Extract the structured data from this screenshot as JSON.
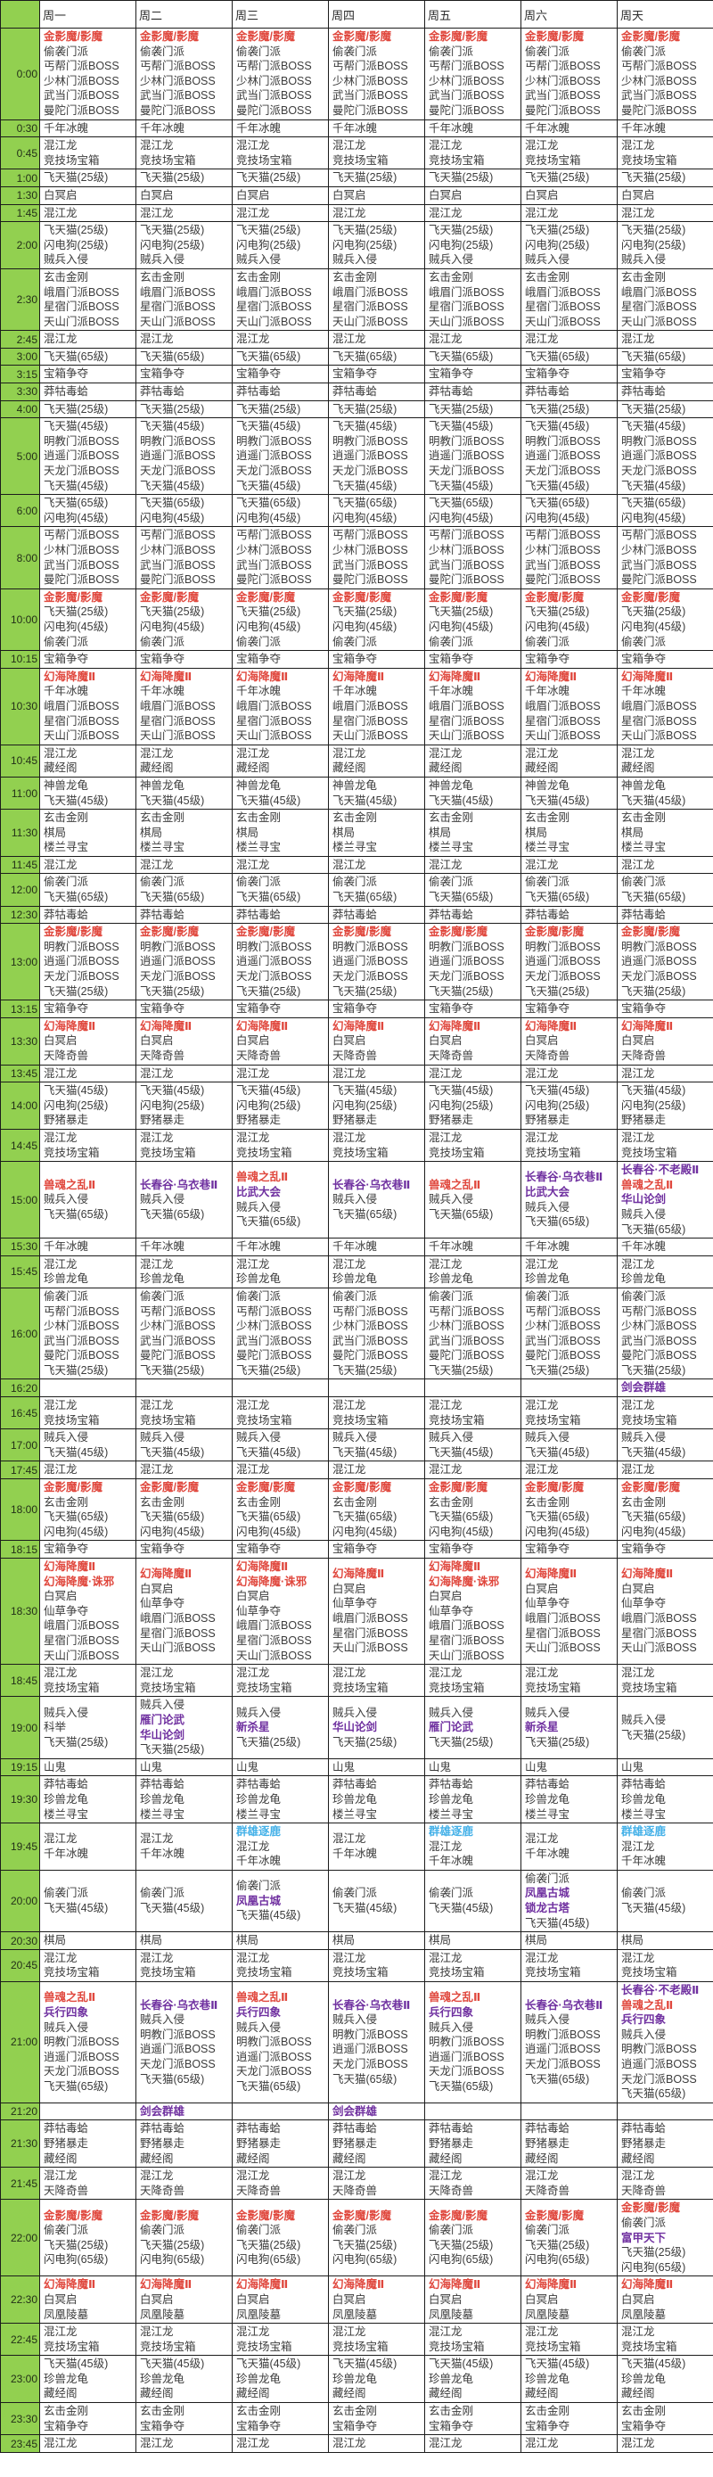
{
  "table": {
    "description": "游戏活动时间表",
    "colors": {
      "accent_green": "#92d050",
      "event_red": "#e0483e",
      "event_purple": "#7031a0",
      "event_blue": "#45b1e8",
      "event_normal": "#3c3c3c",
      "grid_border": "#1c1c1c"
    },
    "day_headers": [
      "周一",
      "周二",
      "周三",
      "周四",
      "周五",
      "周六",
      "周天"
    ],
    "rows": [
      {
        "time": "0:00",
        "all": [
          [
            "金影魔/影魔",
            "red"
          ],
          "偷袭门派",
          "丐帮门派BOSS",
          "少林门派BOSS",
          "武当门派BOSS",
          "曼陀门派BOSS"
        ]
      },
      {
        "time": "0:30",
        "all": [
          "千年冰魄"
        ]
      },
      {
        "time": "0:45",
        "all": [
          "混江龙",
          "竞技场宝箱"
        ]
      },
      {
        "time": "1:00",
        "all": [
          "飞天猫(25级)"
        ]
      },
      {
        "time": "1:30",
        "all": [
          "白冥启"
        ]
      },
      {
        "time": "1:45",
        "all": [
          "混江龙"
        ]
      },
      {
        "time": "2:00",
        "all": [
          "飞天猫(25级)",
          "闪电狗(25级)",
          "贼兵入侵"
        ]
      },
      {
        "time": "2:30",
        "all": [
          "玄击金刚",
          "峨眉门派BOSS",
          "星宿门派BOSS",
          "天山门派BOSS"
        ]
      },
      {
        "time": "2:45",
        "all": [
          "混江龙"
        ]
      },
      {
        "time": "3:00",
        "all": [
          "飞天猫(65级)"
        ]
      },
      {
        "time": "3:15",
        "all": [
          "宝箱争夺"
        ]
      },
      {
        "time": "3:30",
        "all": [
          "莽牯毒蛤"
        ]
      },
      {
        "time": "4:00",
        "all": [
          "飞天猫(25级)"
        ]
      },
      {
        "time": "5:00",
        "all": [
          "飞天猫(45级)",
          "明教门派BOSS",
          "逍遥门派BOSS",
          "天龙门派BOSS",
          "飞天猫(45级)"
        ]
      },
      {
        "time": "6:00",
        "all": [
          "飞天猫(65级)",
          "闪电狗(45级)"
        ]
      },
      {
        "time": "8:00",
        "all": [
          "丐帮门派BOSS",
          "少林门派BOSS",
          "武当门派BOSS",
          "曼陀门派BOSS"
        ]
      },
      {
        "time": "10:00",
        "all": [
          [
            "金影魔/影魔",
            "red"
          ],
          "飞天猫(25级)",
          "闪电狗(45级)",
          "偷袭门派"
        ]
      },
      {
        "time": "10:15",
        "all": [
          "宝箱争夺"
        ]
      },
      {
        "time": "10:30",
        "all": [
          [
            "幻海降魔Ⅱ",
            "red"
          ],
          "千年冰魄",
          "峨眉门派BOSS",
          "星宿门派BOSS",
          "天山门派BOSS"
        ]
      },
      {
        "time": "10:45",
        "all": [
          "混江龙",
          "藏经阁"
        ]
      },
      {
        "time": "11:00",
        "all": [
          "神兽龙龟",
          "飞天猫(45级)"
        ]
      },
      {
        "time": "11:30",
        "all": [
          "玄击金刚",
          "棋局",
          "楼兰寻宝"
        ]
      },
      {
        "time": "11:45",
        "all": [
          "混江龙"
        ]
      },
      {
        "time": "12:00",
        "all": [
          "偷袭门派",
          "飞天猫(65级)"
        ]
      },
      {
        "time": "12:30",
        "all": [
          "莽牯毒蛤"
        ]
      },
      {
        "time": "13:00",
        "all": [
          [
            "金影魔/影魔",
            "red"
          ],
          "明教门派BOSS",
          "逍遥门派BOSS",
          "天龙门派BOSS",
          "飞天猫(25级)"
        ]
      },
      {
        "time": "13:15",
        "all": [
          "宝箱争夺"
        ]
      },
      {
        "time": "13:30",
        "all": [
          [
            "幻海降魔Ⅱ",
            "red"
          ],
          "白冥启",
          "天降奇兽"
        ]
      },
      {
        "time": "13:45",
        "all": [
          "混江龙"
        ]
      },
      {
        "time": "14:00",
        "all": [
          "飞天猫(45级)",
          "闪电狗(25级)",
          "野猪暴走"
        ]
      },
      {
        "time": "14:45",
        "all": [
          "混江龙",
          "竞技场宝箱"
        ]
      },
      {
        "time": "15:00",
        "days": [
          [
            [
              "兽魂之乱Ⅱ",
              "red"
            ],
            "贼兵入侵",
            "飞天猫(65级)"
          ],
          [
            [
              "长春谷·乌衣巷Ⅱ",
              "purple"
            ],
            "贼兵入侵",
            "飞天猫(65级)"
          ],
          [
            [
              "兽魂之乱Ⅱ",
              "red"
            ],
            [
              "比武大会",
              "purple"
            ],
            "贼兵入侵",
            "飞天猫(65级)"
          ],
          [
            [
              "长春谷·乌衣巷Ⅱ",
              "purple"
            ],
            "贼兵入侵",
            "飞天猫(65级)"
          ],
          [
            [
              "兽魂之乱Ⅱ",
              "red"
            ],
            "贼兵入侵",
            "飞天猫(65级)"
          ],
          [
            [
              "长春谷·乌衣巷Ⅱ",
              "purple"
            ],
            [
              "比武大会",
              "purple"
            ],
            "贼兵入侵",
            "飞天猫(65级)"
          ],
          [
            [
              "长春谷·不老殿Ⅱ",
              "purple"
            ],
            [
              "兽魂之乱Ⅱ",
              "red"
            ],
            [
              "华山论剑",
              "purple"
            ],
            "贼兵入侵",
            "飞天猫(65级)"
          ]
        ]
      },
      {
        "time": "15:30",
        "all": [
          "千年冰魄"
        ]
      },
      {
        "time": "15:45",
        "all": [
          "混江龙",
          "珍兽龙龟"
        ]
      },
      {
        "time": "16:00",
        "all": [
          "偷袭门派",
          "丐帮门派BOSS",
          "少林门派BOSS",
          "武当门派BOSS",
          "曼陀门派BOSS",
          "飞天猫(25级)"
        ]
      },
      {
        "time": "16:20",
        "days": [
          [],
          [],
          [],
          [],
          [],
          [],
          [
            [
              "剑会群雄",
              "purple"
            ]
          ]
        ]
      },
      {
        "time": "16:45",
        "all": [
          "混江龙",
          "竞技场宝箱"
        ]
      },
      {
        "time": "17:00",
        "all": [
          "贼兵入侵",
          "飞天猫(45级)"
        ]
      },
      {
        "time": "17:45",
        "all": [
          "混江龙"
        ]
      },
      {
        "time": "18:00",
        "all": [
          [
            "金影魔/影魔",
            "red"
          ],
          "玄击金刚",
          "飞天猫(65级)",
          "闪电狗(45级)"
        ]
      },
      {
        "time": "18:15",
        "all": [
          "宝箱争夺"
        ]
      },
      {
        "time": "18:30",
        "days": [
          [
            [
              "幻海降魔Ⅱ",
              "red"
            ],
            [
              "幻海降魔·诛邪",
              "red"
            ],
            "白冥启",
            "仙草争夺",
            "峨眉门派BOSS",
            "星宿门派BOSS",
            "天山门派BOSS"
          ],
          [
            [
              "幻海降魔Ⅱ",
              "red"
            ],
            "白冥启",
            "仙草争夺",
            "峨眉门派BOSS",
            "星宿门派BOSS",
            "天山门派BOSS"
          ],
          [
            [
              "幻海降魔Ⅱ",
              "red"
            ],
            [
              "幻海降魔·诛邪",
              "red"
            ],
            "白冥启",
            "仙草争夺",
            "峨眉门派BOSS",
            "星宿门派BOSS",
            "天山门派BOSS"
          ],
          [
            [
              "幻海降魔Ⅱ",
              "red"
            ],
            "白冥启",
            "仙草争夺",
            "峨眉门派BOSS",
            "星宿门派BOSS",
            "天山门派BOSS"
          ],
          [
            [
              "幻海降魔Ⅱ",
              "red"
            ],
            [
              "幻海降魔·诛邪",
              "red"
            ],
            "白冥启",
            "仙草争夺",
            "峨眉门派BOSS",
            "星宿门派BOSS",
            "天山门派BOSS"
          ],
          [
            [
              "幻海降魔Ⅱ",
              "red"
            ],
            "白冥启",
            "仙草争夺",
            "峨眉门派BOSS",
            "星宿门派BOSS",
            "天山门派BOSS"
          ],
          [
            [
              "幻海降魔Ⅱ",
              "red"
            ],
            "白冥启",
            "仙草争夺",
            "峨眉门派BOSS",
            "星宿门派BOSS",
            "天山门派BOSS"
          ]
        ]
      },
      {
        "time": "18:45",
        "all": [
          "混江龙",
          "竞技场宝箱"
        ]
      },
      {
        "time": "19:00",
        "days": [
          [
            "贼兵入侵",
            "科举",
            "飞天猫(25级)"
          ],
          [
            "贼兵入侵",
            [
              "雁门论武",
              "purple"
            ],
            [
              "华山论剑",
              "purple"
            ],
            "飞天猫(25级)"
          ],
          [
            "贼兵入侵",
            [
              "新杀星",
              "purple"
            ],
            "飞天猫(25级)"
          ],
          [
            "贼兵入侵",
            [
              "华山论剑",
              "purple"
            ],
            "飞天猫(25级)"
          ],
          [
            "贼兵入侵",
            [
              "雁门论武",
              "purple"
            ],
            "飞天猫(25级)"
          ],
          [
            "贼兵入侵",
            [
              "新杀星",
              "purple"
            ],
            "飞天猫(25级)"
          ],
          [
            "贼兵入侵",
            "飞天猫(25级)"
          ]
        ]
      },
      {
        "time": "19:15",
        "all": [
          "山鬼"
        ]
      },
      {
        "time": "19:30",
        "all": [
          "莽牯毒蛤",
          "珍兽龙龟",
          "楼兰寻宝"
        ]
      },
      {
        "time": "19:45",
        "days": [
          [
            "混江龙",
            "千年冰魄"
          ],
          [
            "混江龙",
            "千年冰魄"
          ],
          [
            [
              "群雄逐鹿",
              "blue"
            ],
            "混江龙",
            "千年冰魄"
          ],
          [
            "混江龙",
            "千年冰魄"
          ],
          [
            [
              "群雄逐鹿",
              "blue"
            ],
            "混江龙",
            "千年冰魄"
          ],
          [
            "混江龙",
            "千年冰魄"
          ],
          [
            [
              "群雄逐鹿",
              "blue"
            ],
            "混江龙",
            "千年冰魄"
          ]
        ]
      },
      {
        "time": "20:00",
        "days": [
          [
            "偷袭门派",
            "飞天猫(45级)"
          ],
          [
            "偷袭门派",
            "飞天猫(45级)"
          ],
          [
            "偷袭门派",
            [
              "凤凰古城",
              "purple"
            ],
            "飞天猫(45级)"
          ],
          [
            "偷袭门派",
            "飞天猫(45级)"
          ],
          [
            "偷袭门派",
            "飞天猫(45级)"
          ],
          [
            "偷袭门派",
            [
              "凤凰古城",
              "purple"
            ],
            [
              "锁龙古塔",
              "purple"
            ],
            "飞天猫(45级)"
          ],
          [
            "偷袭门派",
            "飞天猫(45级)"
          ]
        ]
      },
      {
        "time": "20:30",
        "all": [
          "棋局"
        ]
      },
      {
        "time": "20:45",
        "all": [
          "混江龙",
          "竞技场宝箱"
        ]
      },
      {
        "time": "21:00",
        "days": [
          [
            [
              "兽魂之乱Ⅱ",
              "red"
            ],
            [
              "兵行四象",
              "purple"
            ],
            "贼兵入侵",
            "明教门派BOSS",
            "逍遥门派BOSS",
            "天龙门派BOSS",
            "飞天猫(65级)"
          ],
          [
            [
              "长春谷·乌衣巷Ⅱ",
              "purple"
            ],
            "贼兵入侵",
            "明教门派BOSS",
            "逍遥门派BOSS",
            "天龙门派BOSS",
            "飞天猫(65级)"
          ],
          [
            [
              "兽魂之乱Ⅱ",
              "red"
            ],
            [
              "兵行四象",
              "purple"
            ],
            "贼兵入侵",
            "明教门派BOSS",
            "逍遥门派BOSS",
            "天龙门派BOSS",
            "飞天猫(65级)"
          ],
          [
            [
              "长春谷·乌衣巷Ⅱ",
              "purple"
            ],
            "贼兵入侵",
            "明教门派BOSS",
            "逍遥门派BOSS",
            "天龙门派BOSS",
            "飞天猫(65级)"
          ],
          [
            [
              "兽魂之乱Ⅱ",
              "red"
            ],
            [
              "兵行四象",
              "purple"
            ],
            "贼兵入侵",
            "明教门派BOSS",
            "逍遥门派BOSS",
            "天龙门派BOSS",
            "飞天猫(65级)"
          ],
          [
            [
              "长春谷·乌衣巷Ⅱ",
              "purple"
            ],
            "贼兵入侵",
            "明教门派BOSS",
            "逍遥门派BOSS",
            "天龙门派BOSS",
            "飞天猫(65级)"
          ],
          [
            [
              "长春谷·不老殿Ⅱ",
              "purple"
            ],
            [
              "兽魂之乱Ⅱ",
              "red"
            ],
            [
              "兵行四象",
              "purple"
            ],
            "贼兵入侵",
            "明教门派BOSS",
            "逍遥门派BOSS",
            "天龙门派BOSS",
            "飞天猫(65级)"
          ]
        ]
      },
      {
        "time": "21:20",
        "days": [
          [],
          [
            [
              "剑会群雄",
              "purple"
            ]
          ],
          [],
          [
            [
              "剑会群雄",
              "purple"
            ]
          ],
          [],
          [],
          []
        ]
      },
      {
        "time": "21:30",
        "all": [
          "莽牯毒蛤",
          "野猪暴走",
          "藏经阁"
        ]
      },
      {
        "time": "21:45",
        "all": [
          "混江龙",
          "天降奇兽"
        ]
      },
      {
        "time": "22:00",
        "days": [
          [
            [
              "金影魔/影魔",
              "red"
            ],
            "偷袭门派",
            "飞天猫(25级)",
            "闪电狗(65级)"
          ],
          [
            [
              "金影魔/影魔",
              "red"
            ],
            "偷袭门派",
            "飞天猫(25级)",
            "闪电狗(65级)"
          ],
          [
            [
              "金影魔/影魔",
              "red"
            ],
            "偷袭门派",
            "飞天猫(25级)",
            "闪电狗(65级)"
          ],
          [
            [
              "金影魔/影魔",
              "red"
            ],
            "偷袭门派",
            "飞天猫(25级)",
            "闪电狗(65级)"
          ],
          [
            [
              "金影魔/影魔",
              "red"
            ],
            "偷袭门派",
            "飞天猫(25级)",
            "闪电狗(65级)"
          ],
          [
            [
              "金影魔/影魔",
              "red"
            ],
            "偷袭门派",
            "飞天猫(25级)",
            "闪电狗(65级)"
          ],
          [
            [
              "金影魔/影魔",
              "red"
            ],
            "偷袭门派",
            [
              "富甲天下",
              "purple"
            ],
            "飞天猫(25级)",
            "闪电狗(65级)"
          ]
        ]
      },
      {
        "time": "22:30",
        "all": [
          [
            "幻海降魔Ⅱ",
            "red"
          ],
          "白冥启",
          "凤凰陵墓"
        ]
      },
      {
        "time": "22:45",
        "all": [
          "混江龙",
          "竞技场宝箱"
        ]
      },
      {
        "time": "23:00",
        "all": [
          "飞天猫(45级)",
          "珍兽龙龟",
          "藏经阁"
        ]
      },
      {
        "time": "23:30",
        "all": [
          "玄击金刚",
          "宝箱争夺"
        ]
      },
      {
        "time": "23:45",
        "all": [
          "混江龙"
        ]
      }
    ]
  }
}
